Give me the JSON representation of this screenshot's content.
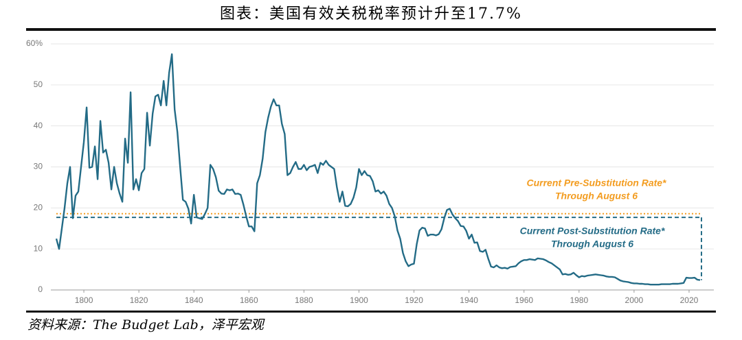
{
  "chart_data": {
    "type": "line",
    "title": "图表：美国有效关税税率预计升至17.7%",
    "source": "资料来源：The Budget Lab，泽平宏观",
    "xlim": [
      1788,
      2029
    ],
    "xticks": [
      1800,
      1820,
      1840,
      1860,
      1880,
      1900,
      1920,
      1940,
      1960,
      1980,
      2000,
      2020
    ],
    "ylim": [
      0,
      60
    ],
    "yticks": [
      0,
      10,
      20,
      30,
      40,
      50,
      {
        "value": 60,
        "label": "60%"
      }
    ],
    "grid": true,
    "x": [
      1790,
      1791,
      1792,
      1793,
      1794,
      1795,
      1796,
      1797,
      1798,
      1799,
      1800,
      1801,
      1802,
      1803,
      1804,
      1805,
      1806,
      1807,
      1808,
      1809,
      1810,
      1811,
      1812,
      1813,
      1814,
      1815,
      1816,
      1817,
      1818,
      1819,
      1820,
      1821,
      1822,
      1823,
      1824,
      1825,
      1826,
      1827,
      1828,
      1829,
      1830,
      1831,
      1832,
      1833,
      1834,
      1835,
      1836,
      1837,
      1838,
      1839,
      1840,
      1841,
      1842,
      1843,
      1844,
      1845,
      1846,
      1847,
      1848,
      1849,
      1850,
      1851,
      1852,
      1853,
      1854,
      1855,
      1856,
      1857,
      1858,
      1859,
      1860,
      1861,
      1862,
      1863,
      1864,
      1865,
      1866,
      1867,
      1868,
      1869,
      1870,
      1871,
      1872,
      1873,
      1874,
      1875,
      1876,
      1877,
      1878,
      1879,
      1880,
      1881,
      1882,
      1883,
      1884,
      1885,
      1886,
      1887,
      1888,
      1889,
      1890,
      1891,
      1892,
      1893,
      1894,
      1895,
      1896,
      1897,
      1898,
      1899,
      1900,
      1901,
      1902,
      1903,
      1904,
      1905,
      1906,
      1907,
      1908,
      1909,
      1910,
      1911,
      1912,
      1913,
      1914,
      1915,
      1916,
      1917,
      1918,
      1919,
      1920,
      1921,
      1922,
      1923,
      1924,
      1925,
      1926,
      1927,
      1928,
      1929,
      1930,
      1931,
      1932,
      1933,
      1934,
      1935,
      1936,
      1937,
      1938,
      1939,
      1940,
      1941,
      1942,
      1943,
      1944,
      1945,
      1946,
      1947,
      1948,
      1949,
      1950,
      1951,
      1952,
      1953,
      1954,
      1955,
      1956,
      1957,
      1958,
      1959,
      1960,
      1961,
      1962,
      1963,
      1964,
      1965,
      1966,
      1967,
      1968,
      1969,
      1970,
      1971,
      1972,
      1973,
      1974,
      1975,
      1976,
      1977,
      1978,
      1979,
      1980,
      1981,
      1982,
      1983,
      1984,
      1985,
      1986,
      1987,
      1988,
      1989,
      1990,
      1991,
      1992,
      1993,
      1994,
      1995,
      1996,
      1997,
      1998,
      1999,
      2000,
      2001,
      2002,
      2003,
      2004,
      2005,
      2006,
      2007,
      2008,
      2009,
      2010,
      2011,
      2012,
      2013,
      2014,
      2015,
      2016,
      2017,
      2018,
      2019,
      2020,
      2021,
      2022,
      2023,
      2024
    ],
    "series": [
      {
        "color": "#236b86",
        "values": [
          12.5,
          10,
          15,
          20,
          26,
          30,
          17.5,
          23,
          24,
          30,
          36,
          44.5,
          29.8,
          30,
          35,
          27,
          41.2,
          33.5,
          34.2,
          31,
          24.5,
          30,
          26,
          23.5,
          21.5,
          36.9,
          31,
          48.2,
          24.5,
          27,
          24.3,
          28.5,
          29.5,
          43.2,
          35.2,
          43,
          47.2,
          47.6,
          45,
          51,
          45,
          53,
          57.5,
          44,
          38.5,
          30,
          22,
          21.5,
          19.8,
          16.2,
          23.2,
          17.7,
          17.5,
          17.3,
          18.5,
          20,
          30.5,
          29.5,
          27.5,
          24.2,
          23.5,
          23.4,
          24.5,
          24.3,
          24.5,
          23.4,
          23.5,
          23.2,
          20.8,
          18,
          15.5,
          15.5,
          14.3,
          26,
          28,
          32,
          38.5,
          42,
          44.7,
          46.5,
          45,
          45,
          40.5,
          38,
          28,
          28.5,
          30,
          31.2,
          29.5,
          29.5,
          30.5,
          29.2,
          30,
          30.2,
          30.5,
          28.5,
          31,
          30.5,
          31.5,
          30.5,
          30,
          29.5,
          25,
          21.5,
          24,
          20.5,
          20.4,
          21,
          22.5,
          25,
          29.5,
          28,
          29,
          28,
          27.8,
          26.5,
          24,
          24.3,
          23.5,
          24,
          23,
          21,
          20,
          18,
          14.5,
          12.5,
          9,
          7,
          5.8,
          6.2,
          6.4,
          11.2,
          14.5,
          15.2,
          15,
          13.2,
          13.5,
          13.5,
          13.3,
          13.6,
          14.8,
          17.5,
          19.5,
          19.8,
          18.4,
          17.5,
          16.8,
          15.6,
          15.5,
          14.4,
          12.5,
          13.5,
          11.5,
          11.6,
          9.5,
          9.3,
          9.8,
          7.6,
          5.7,
          5.5,
          6,
          5.5,
          5.3,
          5.4,
          5.2,
          5.6,
          5.7,
          5.8,
          6.5,
          7,
          7.3,
          7.3,
          7.5,
          7.4,
          7.3,
          7.7,
          7.6,
          7.5,
          7.2,
          6.8,
          6.5,
          6,
          5.5,
          5,
          3.8,
          3.9,
          3.7,
          3.8,
          4.2,
          3.6,
          3.1,
          3.4,
          3.3,
          3.5,
          3.6,
          3.7,
          3.8,
          3.7,
          3.6,
          3.5,
          3.3,
          3.2,
          3.2,
          3.1,
          2.7,
          2.3,
          2.1,
          2,
          1.9,
          1.7,
          1.6,
          1.6,
          1.5,
          1.5,
          1.4,
          1.4,
          1.3,
          1.3,
          1.3,
          1.3,
          1.4,
          1.4,
          1.4,
          1.4,
          1.5,
          1.5,
          1.5,
          1.6,
          1.7,
          3,
          2.9,
          2.9,
          3,
          2.5,
          2.4
        ]
      }
    ],
    "reference_lines": [
      {
        "value": 18.6,
        "color": "#f39c1f",
        "dash": "dotted",
        "label": [
          "Current Pre-Substitution Rate*",
          "Through August 6"
        ]
      },
      {
        "value": 17.7,
        "color": "#236b86",
        "dash": "dashed",
        "label": [
          "Current Post-Substitution Rate*",
          "Through August 6"
        ]
      }
    ]
  }
}
